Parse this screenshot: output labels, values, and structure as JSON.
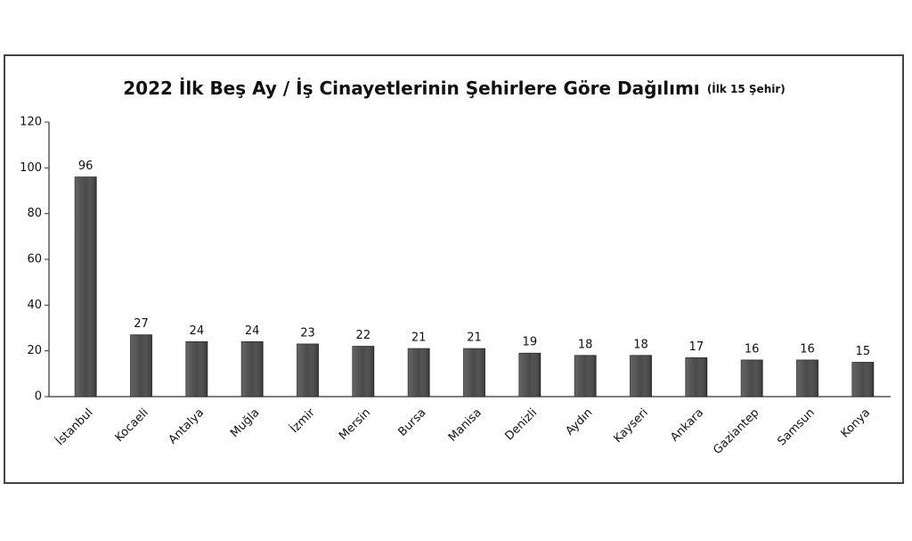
{
  "chart_data": {
    "type": "bar",
    "title": "2022 İlk Beş Ay / İş Cinayetlerinin Şehirlere Göre Dağılımı",
    "subtitle": "(İlk 15 Şehir)",
    "categories": [
      "İstanbul",
      "Kocaeli",
      "Antalya",
      "Muğla",
      "İzmir",
      "Mersin",
      "Bursa",
      "Manisa",
      "Denizli",
      "Aydın",
      "Kayseri",
      "Ankara",
      "Gaziantep",
      "Samsun",
      "Konya"
    ],
    "values": [
      96,
      27,
      24,
      24,
      23,
      22,
      21,
      21,
      19,
      18,
      18,
      17,
      16,
      16,
      15
    ],
    "color": "#4a4a4a",
    "ylim": [
      0,
      120
    ],
    "yticks": [
      0,
      20,
      40,
      60,
      80,
      100,
      120
    ],
    "grid": false
  }
}
